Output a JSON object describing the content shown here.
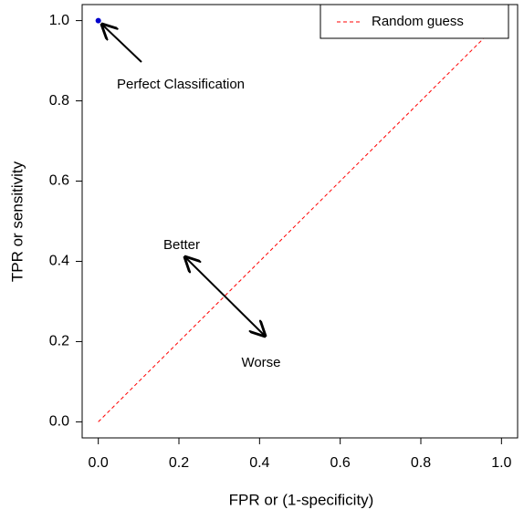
{
  "chart_data": {
    "type": "scatter",
    "x_label": "FPR or (1-specificity)",
    "y_label": "TPR or sensitivity",
    "xlim": [
      -0.04,
      1.04
    ],
    "ylim": [
      -0.04,
      1.04
    ],
    "xticks": [
      {
        "value": 0,
        "label": "0.0"
      },
      0.2,
      0.4,
      0.6,
      0.8,
      {
        "value": 1,
        "label": "1.0"
      }
    ],
    "yticks": [
      {
        "value": 0,
        "label": "0.0"
      },
      0.2,
      0.4,
      0.6,
      0.8,
      {
        "value": 1,
        "label": "1.0"
      }
    ],
    "series": [
      {
        "name": "Random guess",
        "color": "#ff0000",
        "dashed": true,
        "x": [
          0,
          1
        ],
        "values": [
          0,
          1
        ]
      }
    ],
    "points": {
      "color": "#0000cc",
      "x": [
        0
      ],
      "values": [
        1
      ]
    },
    "annotations": [
      "Perfect Classification",
      "Better",
      "Worse"
    ],
    "legend": "top-right"
  }
}
